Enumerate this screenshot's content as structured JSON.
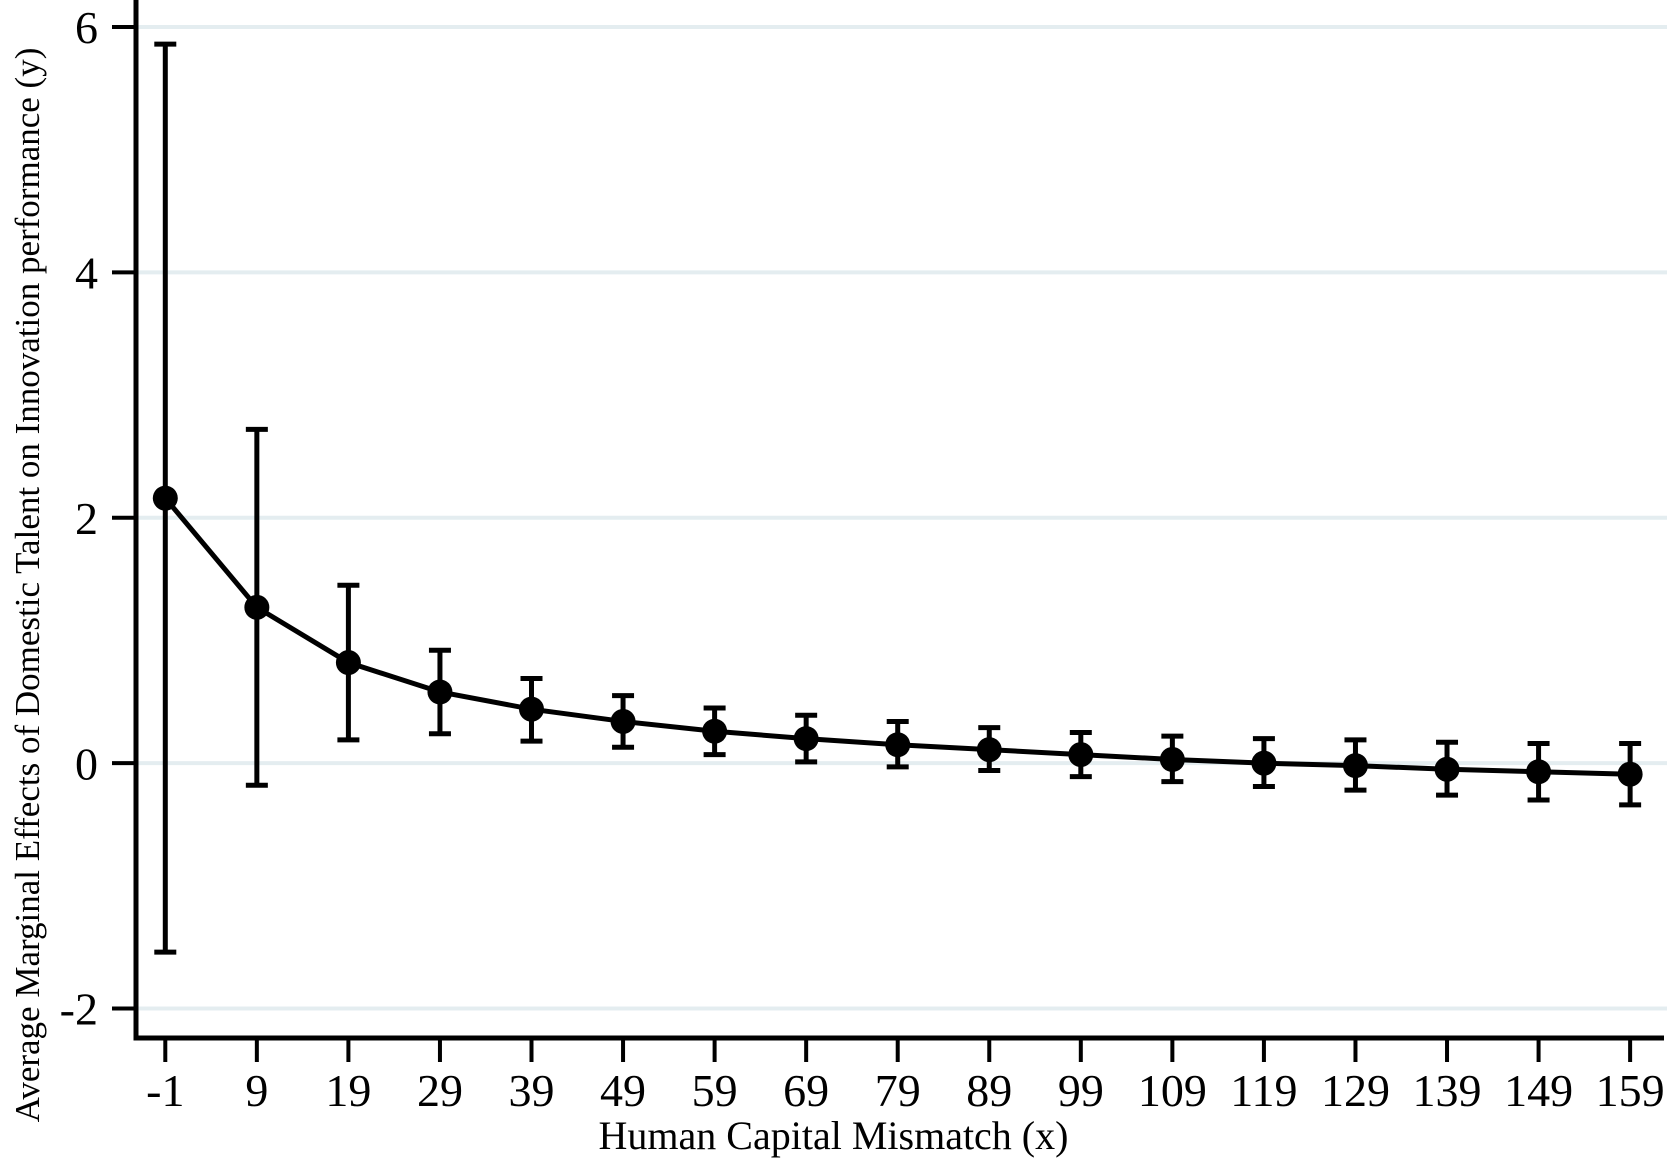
{
  "figure": {
    "background": "#ffffff"
  },
  "chart_data": {
    "type": "line",
    "title": "",
    "xlabel": "Human Capital Mismatch (x)",
    "ylabel": "Average Marginal Effects of Domestic Talent on Innovation performance (y)",
    "x": [
      -1,
      9,
      19,
      29,
      39,
      49,
      59,
      69,
      79,
      89,
      99,
      109,
      119,
      129,
      139,
      149,
      159
    ],
    "y": [
      2.16,
      1.27,
      0.82,
      0.58,
      0.44,
      0.34,
      0.26,
      0.2,
      0.15,
      0.11,
      0.07,
      0.03,
      0.0,
      -0.02,
      -0.05,
      -0.07,
      -0.09
    ],
    "ci_lower": [
      -1.54,
      -0.18,
      0.19,
      0.24,
      0.18,
      0.13,
      0.07,
      0.01,
      -0.03,
      -0.06,
      -0.11,
      -0.15,
      -0.19,
      -0.22,
      -0.26,
      -0.3,
      -0.34
    ],
    "ci_upper": [
      5.86,
      2.72,
      1.45,
      0.92,
      0.69,
      0.55,
      0.45,
      0.39,
      0.34,
      0.29,
      0.25,
      0.22,
      0.2,
      0.19,
      0.17,
      0.16,
      0.16
    ],
    "x_tick_labels": [
      "-1",
      "9",
      "19",
      "29",
      "39",
      "49",
      "59",
      "69",
      "79",
      "89",
      "99",
      "109",
      "119",
      "129",
      "139",
      "149",
      "159"
    ],
    "y_ticks": [
      -2,
      0,
      2,
      4,
      6
    ],
    "y_tick_labels": [
      "-2",
      "0",
      "2",
      "4",
      "6"
    ],
    "xlim": [
      -4.2,
      162.7
    ],
    "ylim": [
      -2.24,
      6.22
    ],
    "grid": "horizontal-only",
    "legend": "none",
    "marker": "filled-circle",
    "error_bars": true,
    "colors": {
      "series": "#000000",
      "axis": "#000000",
      "text": "#000000",
      "gridline": "#e4edf0",
      "background": "#ffffff"
    }
  }
}
